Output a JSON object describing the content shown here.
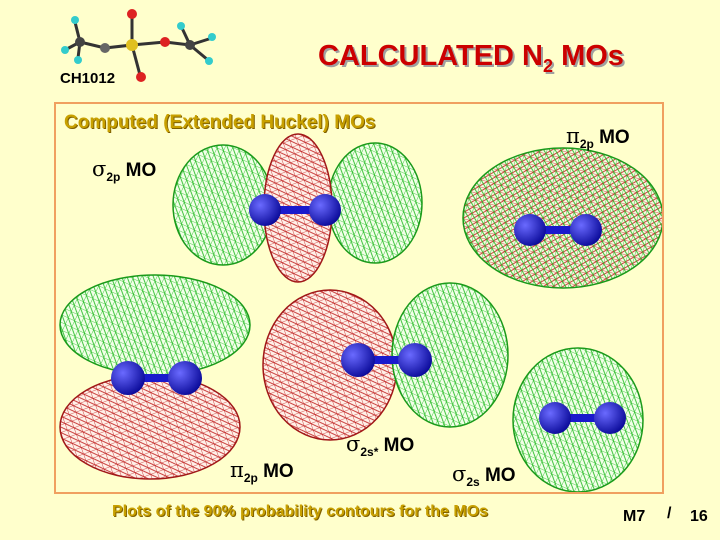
{
  "header": {
    "course_code": "CH1012",
    "title_main": "CALCULATED N",
    "title_sub": "2",
    "title_end": " MOs"
  },
  "panel": {
    "subtitle": "Computed (Extended Huckel) MOs",
    "labels": [
      {
        "symbol": "σ",
        "sub": "2p",
        "text": " MO"
      },
      {
        "symbol": "π",
        "sub": "2p",
        "text": " MO"
      },
      {
        "symbol": "π",
        "sub": "2p",
        "text": " MO"
      },
      {
        "symbol": "σ",
        "sub": "2s*",
        "text": " MO"
      },
      {
        "symbol": "σ",
        "sub": "2s",
        "text": " MO"
      }
    ]
  },
  "footer": {
    "caption": "Plots of the 90% probability contours for the MOs",
    "slide_ref": "M7",
    "separator": "/",
    "slide_number": "16"
  },
  "colors": {
    "background": "#ffffcc",
    "title": "#cc0000",
    "subtitle": "#c8a000",
    "panel_border": "#f0a060",
    "lobe_green": "#22cc22",
    "lobe_red": "#cc2222",
    "atom_blue": "#1a1acc"
  }
}
